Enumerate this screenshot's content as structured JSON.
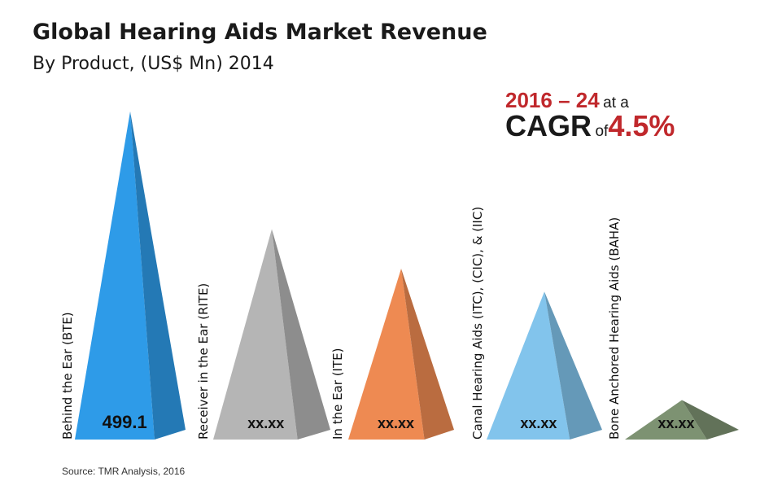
{
  "chart_data": {
    "type": "bar",
    "title": "Global Hearing Aids Market Revenue",
    "subtitle": "By Product, (US$ Mn) 2014",
    "categories": [
      "Behind the Ear (BTE)",
      "Receiver in the Ear (RITE)",
      "In the Ear (ITE)",
      "Canal Hearing Aids (ITC), (CIC), & (IIC)",
      "Bone Anchored Hearing Aids (BAHA)"
    ],
    "value_labels": [
      "499.1",
      "xx.xx",
      "xx.xx",
      "xx.xx",
      "xx.xx"
    ],
    "values": [
      499.1,
      320,
      260,
      225,
      60
    ],
    "series_colors": [
      "#2e9be8",
      "#b5b5b5",
      "#ee8a52",
      "#82c4ec",
      "#7d9272"
    ],
    "xlabel": "",
    "ylabel": "",
    "ylim": [
      0,
      520
    ]
  },
  "callout": {
    "period": "2016 – 24",
    "at_a": "at a",
    "cagr_label": "CAGR",
    "of": "of",
    "cagr_value": "4.5%"
  },
  "source": "Source: TMR Analysis, 2016"
}
